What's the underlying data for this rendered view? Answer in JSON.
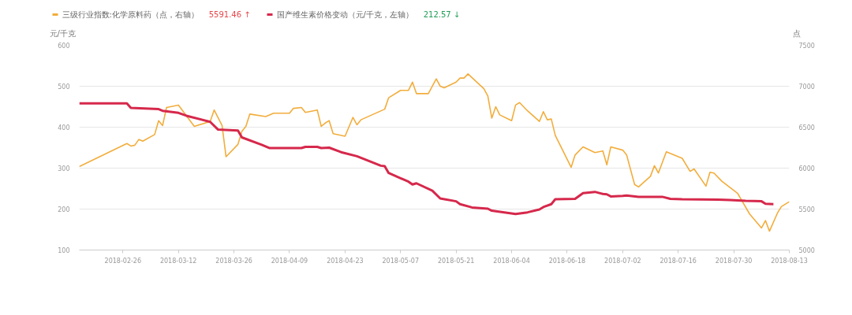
{
  "chart_data": {
    "type": "line",
    "legend": "top left",
    "ylabel": "元/千克",
    "y2label": "点",
    "grid": "y",
    "xlim": [
      "2018-02-15",
      "2018-08-13"
    ],
    "xticks": [
      "2018-02-26",
      "2018-03-12",
      "2018-03-26",
      "2018-04-09",
      "2018-04-23",
      "2018-05-07",
      "2018-05-21",
      "2018-06-04",
      "2018-06-18",
      "2018-07-02",
      "2018-07-16",
      "2018-07-30",
      "2018-08-13"
    ],
    "ylim": [
      100,
      600
    ],
    "yticks": [
      100,
      200,
      300,
      400,
      500,
      600
    ],
    "y2lim": [
      5000,
      7500
    ],
    "y2ticks": [
      5000,
      5500,
      6000,
      6500,
      7000,
      7500
    ],
    "annotations": [
      "5591.46 ↑",
      "212.57 ↓"
    ],
    "series": [
      {
        "name": "三级行业指数:化学原料药（点，右轴）",
        "color": "#f2ad3c",
        "axis": "y2",
        "x": [
          "2018-02-15",
          "2018-02-27",
          "2018-02-28",
          "2018-03-01",
          "2018-03-02",
          "2018-03-03",
          "2018-03-06",
          "2018-03-07",
          "2018-03-08",
          "2018-03-09",
          "2018-03-12",
          "2018-03-16",
          "2018-03-20",
          "2018-03-21",
          "2018-03-23",
          "2018-03-24",
          "2018-03-27",
          "2018-03-28",
          "2018-03-29",
          "2018-03-30",
          "2018-04-03",
          "2018-04-05",
          "2018-04-09",
          "2018-04-10",
          "2018-04-12",
          "2018-04-13",
          "2018-04-16",
          "2018-04-17",
          "2018-04-18",
          "2018-04-19",
          "2018-04-20",
          "2018-04-23",
          "2018-04-25",
          "2018-04-26",
          "2018-04-27",
          "2018-05-03",
          "2018-05-04",
          "2018-05-07",
          "2018-05-09",
          "2018-05-10",
          "2018-05-11",
          "2018-05-14",
          "2018-05-16",
          "2018-05-17",
          "2018-05-18",
          "2018-05-21",
          "2018-05-22",
          "2018-05-23",
          "2018-05-24",
          "2018-05-28",
          "2018-05-29",
          "2018-05-30",
          "2018-05-31",
          "2018-06-01",
          "2018-06-04",
          "2018-06-05",
          "2018-06-06",
          "2018-06-08",
          "2018-06-11",
          "2018-06-12",
          "2018-06-13",
          "2018-06-14",
          "2018-06-15",
          "2018-06-19",
          "2018-06-20",
          "2018-06-22",
          "2018-06-25",
          "2018-06-27",
          "2018-06-28",
          "2018-06-29",
          "2018-07-02",
          "2018-07-03",
          "2018-07-05",
          "2018-07-06",
          "2018-07-09",
          "2018-07-10",
          "2018-07-11",
          "2018-07-13",
          "2018-07-17",
          "2018-07-19",
          "2018-07-20",
          "2018-07-23",
          "2018-07-24",
          "2018-07-25",
          "2018-07-27",
          "2018-07-31",
          "2018-08-03",
          "2018-08-06",
          "2018-08-07",
          "2018-08-08",
          "2018-08-10",
          "2018-08-11",
          "2018-08-13"
        ],
        "values": [
          6020,
          6300,
          6270,
          6280,
          6350,
          6330,
          6410,
          6580,
          6520,
          6740,
          6770,
          6510,
          6570,
          6710,
          6520,
          6140,
          6290,
          6450,
          6510,
          6660,
          6630,
          6670,
          6670,
          6730,
          6740,
          6680,
          6710,
          6510,
          6550,
          6580,
          6420,
          6390,
          6620,
          6530,
          6590,
          6720,
          6860,
          6950,
          6950,
          7050,
          6910,
          6910,
          7090,
          7000,
          6980,
          7050,
          7100,
          7100,
          7150,
          6970,
          6880,
          6610,
          6750,
          6650,
          6580,
          6770,
          6800,
          6700,
          6570,
          6690,
          6590,
          6600,
          6400,
          6010,
          6160,
          6260,
          6190,
          6210,
          6040,
          6260,
          6220,
          6160,
          5800,
          5770,
          5900,
          6030,
          5940,
          6200,
          6120,
          5960,
          5990,
          5780,
          5950,
          5940,
          5840,
          5690,
          5440,
          5270,
          5360,
          5230,
          5450,
          5530,
          5590
        ]
      },
      {
        "name": "国产维生素价格变动（元/千克，左轴）",
        "color": "#d6284b",
        "x": [
          "2018-02-15",
          "2018-02-27",
          "2018-02-28",
          "2018-03-07",
          "2018-03-08",
          "2018-03-12",
          "2018-03-14",
          "2018-03-20",
          "2018-03-22",
          "2018-03-27",
          "2018-03-28",
          "2018-04-02",
          "2018-04-04",
          "2018-04-12",
          "2018-04-13",
          "2018-04-16",
          "2018-04-17",
          "2018-04-19",
          "2018-04-22",
          "2018-04-26",
          "2018-05-02",
          "2018-05-03",
          "2018-05-04",
          "2018-05-09",
          "2018-05-10",
          "2018-05-11",
          "2018-05-15",
          "2018-05-17",
          "2018-05-21",
          "2018-05-22",
          "2018-05-25",
          "2018-05-29",
          "2018-05-30",
          "2018-06-05",
          "2018-06-08",
          "2018-06-11",
          "2018-06-12",
          "2018-06-14",
          "2018-06-15",
          "2018-06-20",
          "2018-06-22",
          "2018-06-25",
          "2018-06-27",
          "2018-06-28",
          "2018-06-29",
          "2018-07-02",
          "2018-07-03",
          "2018-07-06",
          "2018-07-12",
          "2018-07-14",
          "2018-07-17",
          "2018-07-26",
          "2018-07-29",
          "2018-08-02",
          "2018-08-06",
          "2018-08-07",
          "2018-08-09"
        ],
        "values": [
          458,
          458,
          447,
          444,
          440,
          435,
          428,
          413,
          394,
          392,
          375,
          357,
          349,
          349,
          352,
          352,
          349,
          350,
          339,
          329,
          306,
          305,
          288,
          267,
          260,
          263,
          245,
          226,
          219,
          212,
          204,
          201,
          196,
          188,
          192,
          199,
          205,
          212,
          224,
          225,
          239,
          242,
          237,
          236,
          231,
          232,
          233,
          230,
          230,
          225,
          224,
          223,
          222,
          220,
          219,
          213,
          212
        ]
      }
    ]
  }
}
